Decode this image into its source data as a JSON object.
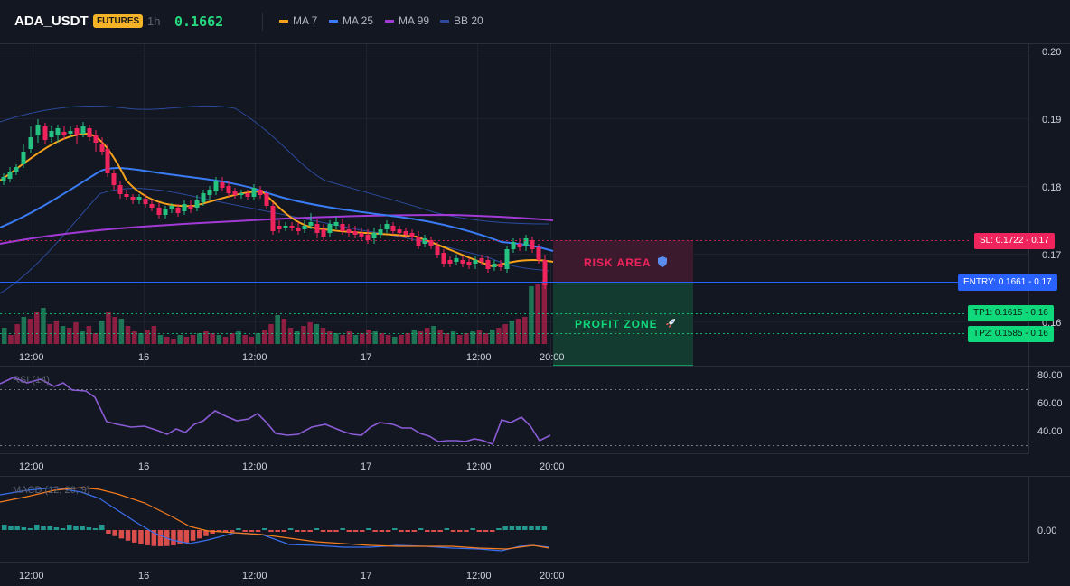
{
  "header": {
    "symbol": "ADA_USDT",
    "badge": "FUTURES",
    "timeframe": "1h",
    "price": "0.1662",
    "indicators": [
      {
        "label": "MA 7",
        "color": "#f7a21b"
      },
      {
        "label": "MA 25",
        "color": "#3a7cf5"
      },
      {
        "label": "MA 99",
        "color": "#a23ad6"
      },
      {
        "label": "BB 20",
        "color": "#2b4a9c"
      }
    ]
  },
  "price_axis": {
    "ticks": [
      "0.20",
      "0.19",
      "0.18",
      "0.17",
      "0.16"
    ]
  },
  "time_axis": {
    "ticks": [
      "12:00",
      "16",
      "12:00",
      "17",
      "12:00",
      "20:00"
    ]
  },
  "zones": {
    "risk": {
      "label": "RISK AREA",
      "icon": "shield-icon"
    },
    "profit": {
      "label": "PROFIT ZONE",
      "icon": "rocket-icon"
    }
  },
  "levels": {
    "sl": {
      "label": "SL: 0.1722",
      "axis": "0.17",
      "color": "#f0245c"
    },
    "entry": {
      "label": "ENTRY: 0.1661",
      "axis": "0.17",
      "color": "#2962ff"
    },
    "tp1": {
      "label": "TP1: 0.1615",
      "axis": "0.16",
      "color": "#0fd97b"
    },
    "tp2": {
      "label": "TP2: 0.1585",
      "axis": "0.16",
      "color": "#0fd97b"
    }
  },
  "rsi": {
    "title": "RSI (14)",
    "ticks": [
      "80.00",
      "60.00",
      "40.00"
    ]
  },
  "macd": {
    "title": "MACD (12, 26, 9)",
    "ticks": [
      "0.00"
    ]
  },
  "colors": {
    "up": "#26c281",
    "down": "#f0245c",
    "bg": "#131722"
  }
}
